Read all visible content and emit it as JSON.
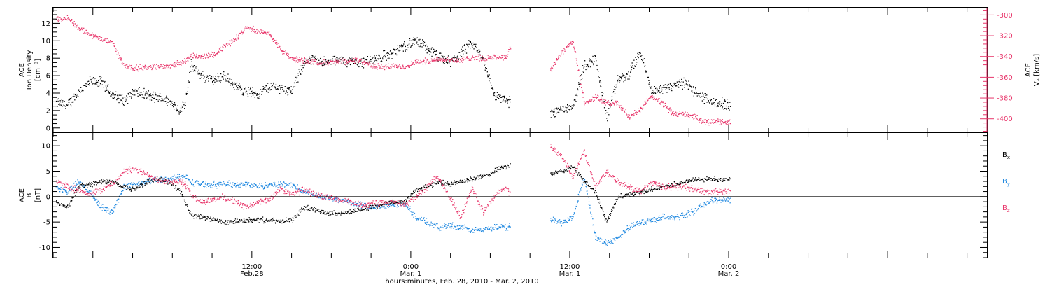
{
  "chart_data": [
    {
      "type": "scatter",
      "panel": "top",
      "ylabel_left": [
        "ACE",
        "Ion Density",
        "[cm⁻³]"
      ],
      "ylabel_right": [
        "ACE",
        "Vₓ [km/s]"
      ],
      "left_axis": {
        "ylim": [
          -0.5,
          13.8
        ],
        "ticks": [
          0,
          2,
          4,
          6,
          8,
          10,
          12
        ]
      },
      "right_axis": {
        "ylim": [
          -413,
          -293
        ],
        "ticks": [
          -300,
          -320,
          -340,
          -360,
          -380,
          -400
        ],
        "color": "#e8356a"
      },
      "series": [
        {
          "color": "#000000",
          "axis": "left",
          "x": [
            0,
            1,
            2,
            3,
            4,
            5,
            6,
            7,
            8,
            9,
            10,
            11,
            11.5,
            12,
            13,
            14,
            15,
            16,
            17,
            18,
            19,
            20,
            21,
            22,
            23,
            24,
            25,
            26,
            27,
            28,
            29,
            30,
            31,
            32,
            33,
            34,
            35,
            36,
            37,
            38,
            39,
            40,
            41,
            42,
            43,
            44,
            45,
            46,
            47,
            48,
            49,
            50,
            51,
            52,
            53,
            54,
            55,
            56,
            57,
            58,
            59,
            60
          ],
          "values": [
            3,
            2.6,
            4.2,
            5.3,
            5.3,
            3.8,
            3.2,
            4.2,
            3.8,
            3.5,
            3.2,
            2.1,
            3.0,
            7.2,
            6.0,
            5.5,
            6.0,
            4.8,
            4.2,
            4.0,
            4.8,
            4.6,
            4.2,
            7.5,
            8.0,
            7.5,
            7.8,
            7.6,
            7.6,
            7.8,
            8.2,
            8.7,
            9.5,
            10.0,
            9.2,
            8.2,
            7.6,
            8.5,
            9.8,
            8.0,
            3.8,
            3.2,
            2.8,
            2.6,
            2.2,
            1.8,
            2.2,
            2.6,
            7.2,
            8.0,
            1.2,
            5.6,
            6.2,
            8.8,
            4.2,
            4.6,
            5.0,
            5.2,
            4.0,
            3.2,
            2.8,
            2.8
          ]
        },
        {
          "color": "#e8356a",
          "axis": "right",
          "x": [
            0,
            1,
            2,
            3,
            4,
            5,
            6,
            7,
            8,
            9,
            10,
            11,
            11.5,
            12,
            13,
            14,
            15,
            16,
            17,
            18,
            19,
            20,
            21,
            22,
            23,
            24,
            25,
            26,
            27,
            28,
            29,
            30,
            31,
            32,
            33,
            34,
            35,
            36,
            37,
            38,
            39,
            40,
            41,
            42,
            43,
            44,
            45,
            46,
            47,
            48,
            49,
            50,
            51,
            52,
            53,
            54,
            55,
            56,
            57,
            58,
            59,
            60
          ],
          "values": [
            -305,
            -302,
            -312,
            -318,
            -323,
            -326,
            -348,
            -351,
            -350,
            -349,
            -349,
            -346,
            -344,
            -339,
            -340,
            -338,
            -330,
            -322,
            -310,
            -316,
            -318,
            -333,
            -342,
            -343,
            -345,
            -346,
            -345,
            -344,
            -343,
            -348,
            -350,
            -349,
            -350,
            -345,
            -344,
            -342,
            -343,
            -344,
            -340,
            -342,
            -340,
            -340,
            -320,
            -350,
            -362,
            -353,
            -335,
            -325,
            -385,
            -378,
            -385,
            -385,
            -398,
            -390,
            -378,
            -385,
            -395,
            -395,
            -399,
            -403,
            -402,
            -403
          ]
        }
      ]
    },
    {
      "type": "scatter",
      "panel": "bottom",
      "ylabel_left": [
        "ACE",
        "B",
        "[nT]"
      ],
      "ylim": [
        -12,
        12.5
      ],
      "yticks": [
        -10,
        -5,
        0,
        5,
        10
      ],
      "zero_line": true,
      "series": [
        {
          "name": "Bx",
          "label_main": "B",
          "label_sub": "x",
          "color": "#000000",
          "x": [
            0,
            1,
            2,
            3,
            4,
            5,
            6,
            7,
            8,
            9,
            10,
            11,
            11.5,
            12,
            13,
            14,
            15,
            16,
            17,
            18,
            19,
            20,
            21,
            22,
            23,
            24,
            25,
            26,
            27,
            28,
            29,
            30,
            31,
            32,
            33,
            34,
            35,
            36,
            37,
            38,
            39,
            40,
            41,
            42,
            43,
            44,
            45,
            46,
            47,
            48,
            49,
            50,
            51,
            52,
            53,
            54,
            55,
            56,
            57,
            58,
            59,
            60
          ],
          "values": [
            -1,
            -2,
            2,
            2.5,
            3,
            3,
            2,
            1.5,
            3,
            3.5,
            3,
            1.5,
            -1,
            -3.5,
            -4,
            -4.5,
            -5,
            -4.8,
            -4.6,
            -4.5,
            -4.6,
            -4.8,
            -4.6,
            -2,
            -2.5,
            -3,
            -3.2,
            -3,
            -2.5,
            -2,
            -1.5,
            -1,
            -1,
            1.5,
            2,
            3,
            2.5,
            3,
            3.5,
            4,
            5,
            6,
            6.5,
            5,
            4,
            4.5,
            5,
            6,
            3,
            1,
            -5,
            0,
            0.5,
            1,
            1.5,
            2,
            2.5,
            3,
            3.5,
            3.5,
            3.5,
            3.5
          ]
        },
        {
          "name": "By",
          "label_main": "B",
          "label_sub": "y",
          "color": "#1f88e0",
          "x": [
            0,
            1,
            2,
            3,
            4,
            5,
            6,
            7,
            8,
            9,
            10,
            11,
            11.5,
            12,
            13,
            14,
            15,
            16,
            17,
            18,
            19,
            20,
            21,
            22,
            23,
            24,
            25,
            26,
            27,
            28,
            29,
            30,
            31,
            32,
            33,
            34,
            35,
            36,
            37,
            38,
            39,
            40,
            41,
            42,
            43,
            44,
            45,
            46,
            47,
            48,
            49,
            50,
            51,
            52,
            53,
            54,
            55,
            56,
            57,
            58,
            59,
            60
          ],
          "values": [
            2,
            1,
            3,
            1,
            -2,
            -3,
            2,
            2.5,
            3,
            3.5,
            3.5,
            4,
            4,
            3,
            2.5,
            2.5,
            2.5,
            2.5,
            2.5,
            2,
            2.5,
            2.5,
            2.5,
            1,
            0.5,
            0,
            -0.5,
            -1,
            -1.5,
            -2,
            -2,
            -1.5,
            -1,
            -4,
            -5,
            -6,
            -5.5,
            -6,
            -6.5,
            -6.5,
            -6,
            -6,
            -5.5,
            -6,
            -5,
            -4.5,
            -5,
            -4,
            4,
            -8,
            -9,
            -8,
            -6,
            -5,
            -4.5,
            -4,
            -4,
            -3.5,
            -2.5,
            -1,
            -0.5,
            -0.5
          ]
        },
        {
          "name": "Bz",
          "label_main": "B",
          "label_sub": "z",
          "color": "#e8356a",
          "x": [
            0,
            1,
            2,
            3,
            4,
            5,
            6,
            7,
            8,
            9,
            10,
            11,
            11.5,
            12,
            13,
            14,
            15,
            16,
            17,
            18,
            19,
            20,
            21,
            22,
            23,
            24,
            25,
            26,
            27,
            28,
            29,
            30,
            31,
            32,
            33,
            34,
            35,
            36,
            37,
            38,
            39,
            40,
            41,
            42,
            43,
            44,
            45,
            46,
            47,
            48,
            49,
            50,
            51,
            52,
            53,
            54,
            55,
            56,
            57,
            58,
            59,
            60
          ],
          "values": [
            3,
            2,
            1.5,
            0.5,
            1.5,
            2.5,
            5,
            5.5,
            4.5,
            3.5,
            3,
            3,
            2.5,
            0.5,
            -1,
            -0.5,
            0,
            -1,
            -2,
            -1,
            -0.5,
            1.5,
            0.5,
            1.5,
            0.5,
            0,
            -0.5,
            -1,
            -1.5,
            -1.5,
            -1,
            -1,
            -1.5,
            0,
            2,
            4,
            0,
            -4,
            2,
            -3,
            0,
            2,
            -1,
            -3,
            6,
            10,
            8,
            4,
            9,
            2,
            5,
            3,
            2,
            1,
            3,
            2,
            2,
            2,
            1.5,
            1,
            1,
            1
          ]
        }
      ]
    }
  ],
  "x_axis": {
    "range_hours": [
      -15,
      55.5
    ],
    "gaps": [
      [
        19.5,
        22.5
      ],
      [
        41.5,
        44.5
      ]
    ],
    "ticks": [
      {
        "h": 0,
        "line1": "12:00",
        "line2": "Feb.28"
      },
      {
        "h": 12,
        "line1": "0:00",
        "line2": "Mar. 1"
      },
      {
        "h": 24,
        "line1": "12:00",
        "line2": "Mar. 1"
      },
      {
        "h": 36,
        "line1": "0:00",
        "line2": "Mar. 2"
      }
    ],
    "xlabel": "hours:minutes, Feb. 28, 2010 - Mar.  2, 2010"
  }
}
